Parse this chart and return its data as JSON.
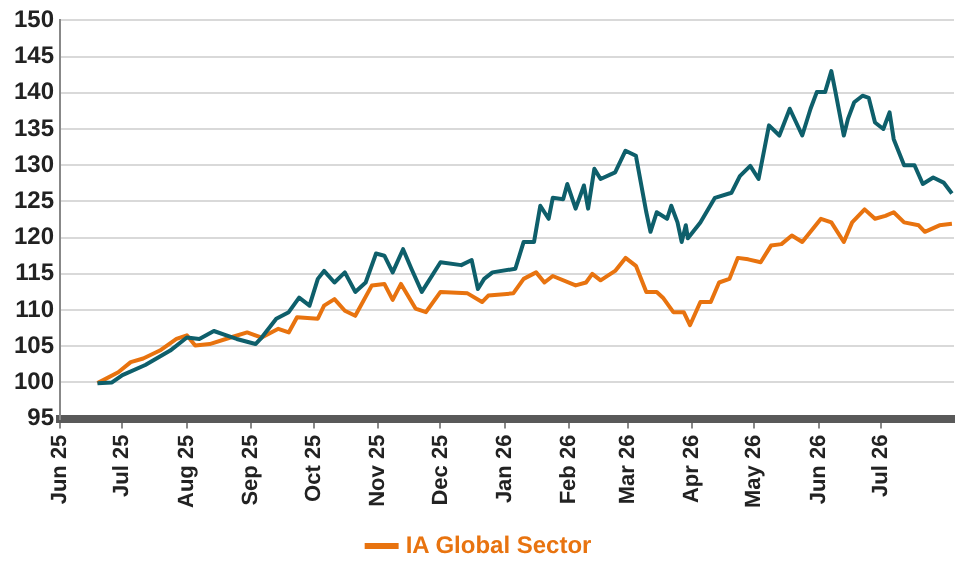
{
  "chart_data": {
    "type": "line",
    "xlim": [
      "2025-06-01",
      "2026-08-05"
    ],
    "xticks": [
      {
        "value": "2025-06-01",
        "label": "Jun 25"
      },
      {
        "value": "2025-07-01",
        "label": "Jul 25"
      },
      {
        "value": "2025-08-01",
        "label": "Aug 25"
      },
      {
        "value": "2025-09-01",
        "label": "Sep 25"
      },
      {
        "value": "2025-10-01",
        "label": "Oct 25"
      },
      {
        "value": "2025-11-01",
        "label": "Nov 25"
      },
      {
        "value": "2025-12-01",
        "label": "Dec 25"
      },
      {
        "value": "2026-01-01",
        "label": "Jan 26"
      },
      {
        "value": "2026-02-01",
        "label": "Feb 26"
      },
      {
        "value": "2026-03-01",
        "label": "Mar 26"
      },
      {
        "value": "2026-04-01",
        "label": "Apr 26"
      },
      {
        "value": "2026-05-01",
        "label": "May 26"
      },
      {
        "value": "2026-06-01",
        "label": "Jun 26"
      },
      {
        "value": "2026-07-01",
        "label": "Jul 26"
      }
    ],
    "ylim": [
      95,
      150
    ],
    "yticks": [
      95,
      100,
      105,
      110,
      115,
      120,
      125,
      130,
      135,
      140,
      145,
      150
    ],
    "grid": "y",
    "legend": "bottom",
    "marker": "none",
    "line_style": "solid",
    "series": [
      {
        "color": "#0e5f6b",
        "x": [
          "2025-06-19",
          "2025-06-26",
          "2025-07-01",
          "2025-07-12",
          "2025-07-24",
          "2025-08-01",
          "2025-08-07",
          "2025-08-14",
          "2025-08-20",
          "2025-08-25",
          "2025-09-03",
          "2025-09-06",
          "2025-09-13",
          "2025-09-19",
          "2025-09-24",
          "2025-09-29",
          "2025-10-03",
          "2025-10-06",
          "2025-10-11",
          "2025-10-16",
          "2025-10-21",
          "2025-10-26",
          "2025-10-31",
          "2025-11-04",
          "2025-11-08",
          "2025-11-13",
          "2025-11-17",
          "2025-11-22",
          "2025-12-01",
          "2025-12-11",
          "2025-12-16",
          "2025-12-19",
          "2025-12-22",
          "2025-12-26",
          "2026-01-06",
          "2026-01-10",
          "2026-01-15",
          "2026-01-18",
          "2026-01-22",
          "2026-01-24",
          "2026-01-29",
          "2026-01-31",
          "2026-02-04",
          "2026-02-08",
          "2026-02-10",
          "2026-02-13",
          "2026-02-16",
          "2026-02-23",
          "2026-02-28",
          "2026-03-05",
          "2026-03-10",
          "2026-03-12",
          "2026-03-15",
          "2026-03-20",
          "2026-03-22",
          "2026-03-25",
          "2026-03-27",
          "2026-03-29",
          "2026-03-30",
          "2026-04-05",
          "2026-04-12",
          "2026-04-20",
          "2026-04-24",
          "2026-04-29",
          "2026-05-03",
          "2026-05-08",
          "2026-05-13",
          "2026-05-18",
          "2026-05-24",
          "2026-05-28",
          "2026-05-31",
          "2026-06-04",
          "2026-06-07",
          "2026-06-09",
          "2026-06-13",
          "2026-06-15",
          "2026-06-18",
          "2026-06-22",
          "2026-06-25",
          "2026-06-28",
          "2026-07-02",
          "2026-07-05",
          "2026-07-07",
          "2026-07-12",
          "2026-07-17",
          "2026-07-21",
          "2026-07-26",
          "2026-07-31",
          "2026-08-04"
        ],
        "values": [
          99.9,
          100,
          101,
          102.4,
          104.4,
          106.2,
          106,
          107.1,
          106.5,
          106,
          105.3,
          106.2,
          108.8,
          109.7,
          111.7,
          110.6,
          114.3,
          115.4,
          113.8,
          115.2,
          112.5,
          113.8,
          117.8,
          117.5,
          115.2,
          118.4,
          115.7,
          112.5,
          116.6,
          116.2,
          116.9,
          112.9,
          114.3,
          115.2,
          115.7,
          119.4,
          119.4,
          124.4,
          122.6,
          125.5,
          125.3,
          127.4,
          124,
          127.2,
          124,
          129.5,
          128.1,
          129,
          132,
          131.3,
          123.5,
          120.8,
          123.5,
          122.6,
          124.4,
          122.1,
          119.4,
          121.7,
          119.9,
          122.1,
          125.5,
          126.2,
          128.5,
          129.9,
          128.1,
          135.5,
          134.1,
          137.8,
          134.1,
          137.8,
          140.1,
          140.1,
          143,
          140.1,
          134.1,
          136.4,
          138.7,
          139.6,
          139.3,
          135.9,
          135,
          137.3,
          133.6,
          130,
          130,
          127.4,
          128.3,
          127.6,
          126.1
        ]
      },
      {
        "name": "IA Global Sector",
        "color": "#e8730f",
        "x": [
          "2025-06-19",
          "2025-06-29",
          "2025-07-05",
          "2025-07-11",
          "2025-07-19",
          "2025-07-27",
          "2025-08-01",
          "2025-08-05",
          "2025-08-12",
          "2025-08-22",
          "2025-08-30",
          "2025-09-06",
          "2025-09-14",
          "2025-09-19",
          "2025-09-23",
          "2025-10-03",
          "2025-10-06",
          "2025-10-11",
          "2025-10-16",
          "2025-10-21",
          "2025-10-29",
          "2025-11-04",
          "2025-11-08",
          "2025-11-12",
          "2025-11-19",
          "2025-11-24",
          "2025-12-01",
          "2025-12-14",
          "2025-12-21",
          "2025-12-24",
          "2026-01-05",
          "2026-01-10",
          "2026-01-16",
          "2026-01-20",
          "2026-01-24",
          "2026-02-04",
          "2026-02-09",
          "2026-02-12",
          "2026-02-16",
          "2026-02-23",
          "2026-02-28",
          "2026-03-05",
          "2026-03-10",
          "2026-03-15",
          "2026-03-18",
          "2026-03-23",
          "2026-03-28",
          "2026-03-31",
          "2026-04-05",
          "2026-04-10",
          "2026-04-14",
          "2026-04-19",
          "2026-04-23",
          "2026-04-28",
          "2026-05-04",
          "2026-05-09",
          "2026-05-14",
          "2026-05-19",
          "2026-05-24",
          "2026-06-02",
          "2026-06-07",
          "2026-06-13",
          "2026-06-17",
          "2026-06-23",
          "2026-06-28",
          "2026-07-03",
          "2026-07-07",
          "2026-07-12",
          "2026-07-19",
          "2026-07-22",
          "2026-07-29",
          "2026-08-04"
        ],
        "values": [
          99.9,
          101.4,
          102.8,
          103.3,
          104.4,
          106,
          106.5,
          105.1,
          105.3,
          106.2,
          106.9,
          106.2,
          107.4,
          106.9,
          109,
          108.8,
          110.6,
          111.5,
          109.9,
          109.2,
          113.4,
          113.6,
          111.4,
          113.6,
          110.2,
          109.7,
          112.5,
          112.3,
          111.1,
          112,
          112.3,
          114.3,
          115.2,
          113.8,
          114.7,
          113.4,
          113.8,
          115,
          114.1,
          115.4,
          117.2,
          116.1,
          112.5,
          112.5,
          111.7,
          109.7,
          109.7,
          107.9,
          111.1,
          111.1,
          113.8,
          114.3,
          117.2,
          117,
          116.6,
          118.9,
          119.1,
          120.3,
          119.4,
          122.6,
          122.1,
          119.4,
          122.1,
          123.9,
          122.6,
          123,
          123.5,
          122.1,
          121.7,
          120.8,
          121.7,
          121.9
        ]
      }
    ]
  }
}
